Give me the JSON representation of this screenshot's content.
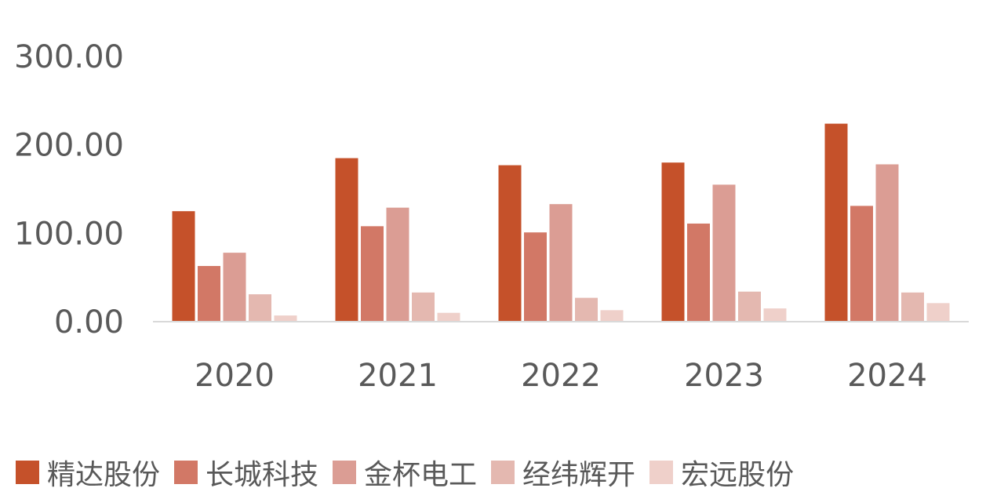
{
  "chart_data": {
    "type": "bar",
    "title": "",
    "xlabel": "",
    "ylabel": "",
    "categories": [
      "2020",
      "2021",
      "2022",
      "2023",
      "2024"
    ],
    "ylim": [
      0,
      300
    ],
    "yticks": [
      "0.00",
      "100.00",
      "200.00",
      "300.00"
    ],
    "grid": false,
    "legend_position": "bottom",
    "series": [
      {
        "name": "精达股份",
        "color": "#C5512A",
        "values": [
          125,
          185,
          177,
          180,
          224
        ]
      },
      {
        "name": "长城科技",
        "color": "#D27866",
        "values": [
          63,
          108,
          101,
          111,
          131
        ]
      },
      {
        "name": "金杯电工",
        "color": "#DB9D94",
        "values": [
          78,
          129,
          133,
          155,
          178
        ]
      },
      {
        "name": "经纬辉开",
        "color": "#E4B8B0",
        "values": [
          31,
          33,
          27,
          34,
          33
        ]
      },
      {
        "name": "宏远股份",
        "color": "#EFD0CA",
        "values": [
          7,
          10,
          13,
          15,
          21
        ]
      }
    ]
  }
}
